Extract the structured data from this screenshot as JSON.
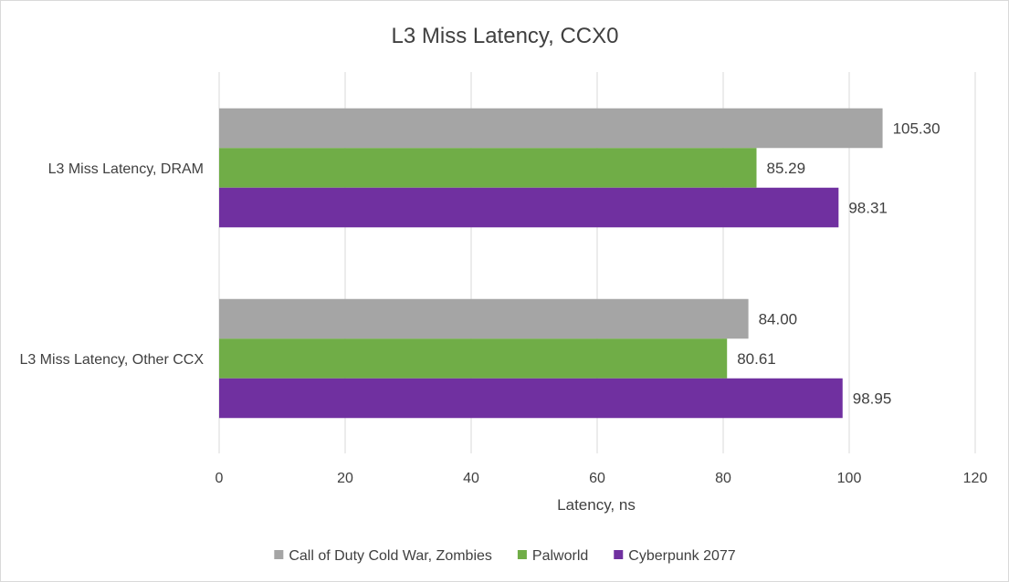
{
  "chart_data": {
    "type": "bar",
    "orientation": "horizontal",
    "title": "L3 Miss Latency, CCX0",
    "xlabel": "Latency, ns",
    "ylabel": "",
    "xlim": [
      0,
      120
    ],
    "x_ticks": [
      0,
      20,
      40,
      60,
      80,
      100,
      120
    ],
    "grid": true,
    "legend_position": "bottom",
    "categories": [
      "L3 Miss Latency, DRAM",
      "L3 Miss Latency, Other CCX"
    ],
    "series": [
      {
        "name": "Call of Duty Cold War, Zombies",
        "color": "#a5a5a5",
        "values": [
          105.3,
          84.0
        ],
        "labels": [
          "105.30",
          "84.00"
        ]
      },
      {
        "name": "Palworld",
        "color": "#70ad47",
        "values": [
          85.29,
          80.61
        ],
        "labels": [
          "85.29",
          "80.61"
        ]
      },
      {
        "name": "Cyberpunk 2077",
        "color": "#7030a0",
        "values": [
          98.31,
          98.95
        ],
        "labels": [
          "98.31",
          "98.95"
        ]
      }
    ]
  }
}
